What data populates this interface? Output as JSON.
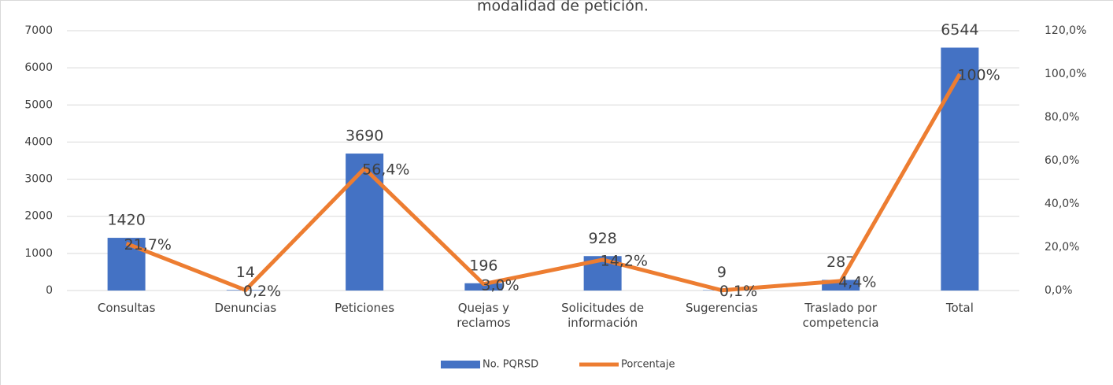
{
  "chart_data": {
    "type": "bar-line",
    "title": "modalidad de petición.",
    "categories": [
      "Consultas",
      "Denuncias",
      "Peticiones",
      "Quejas y reclamos",
      "Solicitudes de información",
      "Sugerencias",
      "Traslado por competencia",
      "Total"
    ],
    "series": [
      {
        "name": "No. PQRSD",
        "color": "#4472c4",
        "type": "bar",
        "values": [
          1420,
          14,
          3690,
          196,
          928,
          9,
          287,
          6544
        ]
      },
      {
        "name": "Porcentaje",
        "color": "#ed7d31",
        "type": "line",
        "axis": "y2",
        "values": [
          21.7,
          0.2,
          56.4,
          3.0,
          14.2,
          0.1,
          4.4,
          100
        ],
        "value_labels": [
          "21,7%",
          "0,2%",
          "56,4%",
          "3,0%",
          "14,2%",
          "0,1%",
          "4,4%",
          "100%"
        ]
      }
    ],
    "ylim": [
      0,
      7000
    ],
    "yticks": [
      0,
      1000,
      2000,
      3000,
      4000,
      5000,
      6000,
      7000
    ],
    "y2lim": [
      0,
      120
    ],
    "y2ticks": [
      {
        "value": 0,
        "label": "0,0%"
      },
      {
        "value": 20,
        "label": "20,0%"
      },
      {
        "value": 40,
        "label": "40,0%"
      },
      {
        "value": 60,
        "label": "60,0%"
      },
      {
        "value": 80,
        "label": "80,0%"
      },
      {
        "value": 100,
        "label": "100,0%"
      },
      {
        "value": 120,
        "label": "120,0%"
      }
    ],
    "grid": true,
    "legend": "bottom"
  }
}
